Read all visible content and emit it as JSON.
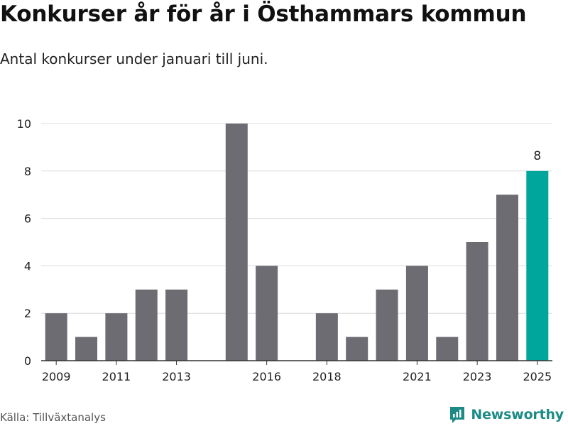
{
  "header": {
    "title": "Konkurser år för år i Östhammars kommun",
    "subtitle": "Antal konkurser under januari till juni."
  },
  "footer": {
    "source": "Källa: Tillväxtanalys",
    "brand": "Newsworthy"
  },
  "colors": {
    "bar": "#6d6c73",
    "highlight": "#00a69c",
    "grid": "#dcdcdc",
    "axis": "#333333",
    "brand": "#1c8b86"
  },
  "chart_data": {
    "type": "bar",
    "x": [
      2009,
      2010,
      2011,
      2012,
      2013,
      2014,
      2015,
      2016,
      2017,
      2018,
      2019,
      2020,
      2021,
      2022,
      2023,
      2024,
      2025
    ],
    "values": [
      2,
      1,
      2,
      3,
      3,
      0,
      10,
      4,
      0,
      2,
      1,
      3,
      4,
      1,
      5,
      7,
      8
    ],
    "highlight_x": 2025,
    "data_labels": [
      {
        "x": 2025,
        "text": "8"
      }
    ],
    "xticks": [
      "2009",
      "2011",
      "2013",
      "2016",
      "2018",
      "2021",
      "2023",
      "2025"
    ],
    "yticks": [
      "0",
      "2",
      "4",
      "6",
      "8",
      "10"
    ],
    "ylim": [
      0,
      10
    ],
    "grid": true,
    "legend": "none"
  }
}
